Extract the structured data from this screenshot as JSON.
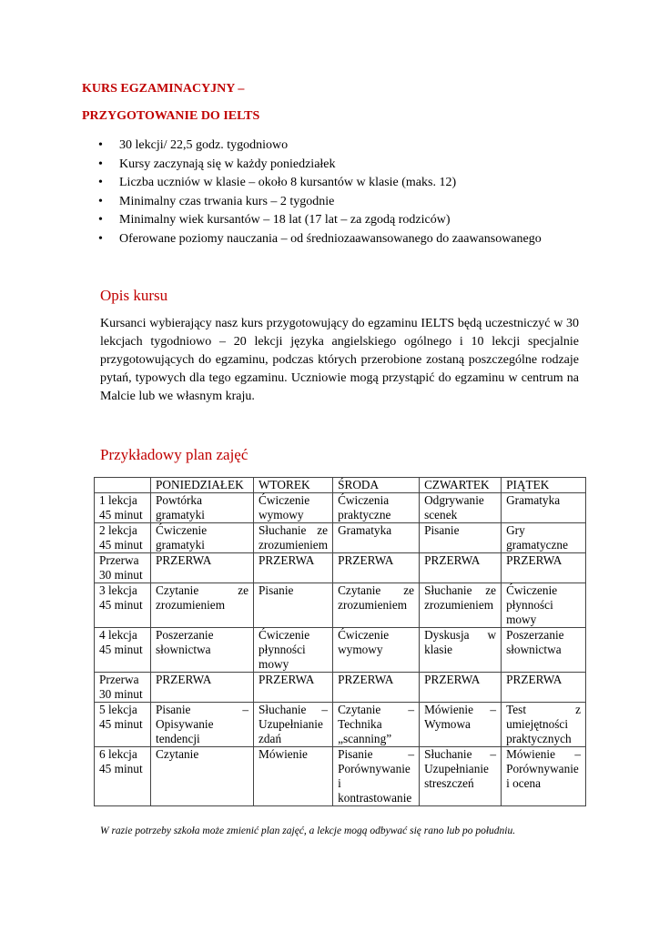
{
  "title_line1": "KURS EGZAMINACYJNY –",
  "title_line2": "PRZYGOTOWANIE DO IELTS",
  "bullets": [
    "30 lekcji/ 22,5 godz. tygodniowo",
    "Kursy zaczynają się w każdy poniedziałek",
    "Liczba uczniów w klasie – około 8 kursantów w klasie (maks. 12)",
    "Minimalny czas trwania kurs – 2 tygodnie",
    "Minimalny wiek kursantów – 18 lat (17 lat – za zgodą rodziców)",
    "Oferowane poziomy nauczania – od średniozaawansowanego do zaawansowanego"
  ],
  "section1": {
    "heading": "Opis kursu",
    "text": "Kursanci wybierający nasz kurs przygotowujący do egzaminu IELTS będą uczestniczyć w 30 lekcjach tygodniowo – 20 lekcji języka angielskiego ogólnego i 10 lekcji specjalnie przygotowujących do egzaminu, podczas których przerobione zostaną poszczególne rodzaje pytań, typowych dla tego egzaminu. Uczniowie mogą przystąpić do egzaminu w centrum na Malcie lub we własnym kraju."
  },
  "section2": {
    "heading": "Przykładowy plan zajęć"
  },
  "table": {
    "headers": [
      "",
      "PONIEDZIAŁEK",
      "WTOREK",
      "ŚRODA",
      "CZWARTEK",
      "PIĄTEK"
    ],
    "rows": [
      [
        "1 lekcja 45 minut",
        "Powtórka gramatyki",
        "Ćwiczenie wymowy",
        "Ćwiczenia praktyczne",
        "Odgrywanie scenek",
        "Gramatyka"
      ],
      [
        "2 lekcja 45 minut",
        "Ćwiczenie gramatyki",
        "Słuchanie ze zrozumieniem",
        "Gramatyka",
        "Pisanie",
        "Gry gramatyczne"
      ],
      [
        "Przerwa 30 minut",
        "PRZERWA",
        "PRZERWA",
        "PRZERWA",
        "PRZERWA",
        "PRZERWA"
      ],
      [
        "3 lekcja 45 minut",
        "Czytanie ze zrozumieniem",
        "Pisanie",
        "Czytanie ze zrozumieniem",
        "Słuchanie ze zrozumieniem",
        "Ćwiczenie płynności mowy"
      ],
      [
        "4 lekcja 45 minut",
        "Poszerzanie słownictwa",
        "Ćwiczenie płynności mowy",
        "Ćwiczenie wymowy",
        "Dyskusja w klasie",
        "Poszerzanie słownictwa"
      ],
      [
        "Przerwa 30 minut",
        "PRZERWA",
        "PRZERWA",
        "PRZERWA",
        "PRZERWA",
        "PRZERWA"
      ],
      [
        "5 lekcja 45 minut",
        "Pisanie – Opisywanie tendencji",
        "Słuchanie – Uzupełnianie zdań",
        "Czytanie – Technika „scanning”",
        "Mówienie – Wymowa",
        "Test z umiejętności praktycznych"
      ],
      [
        "6 lekcja 45 minut",
        "Czytanie",
        "Mówienie",
        "Pisanie – Porównywanie i kontrastowanie",
        "Słuchanie – Uzupełnianie streszczeń",
        "Mówienie – Porównywanie i ocena"
      ]
    ]
  },
  "note": "W razie potrzeby szkoła może zmienić plan zajęć, a lekcje mogą odbywać się rano lub po południu.",
  "colors": {
    "heading": "#c00000",
    "text": "#000000"
  }
}
